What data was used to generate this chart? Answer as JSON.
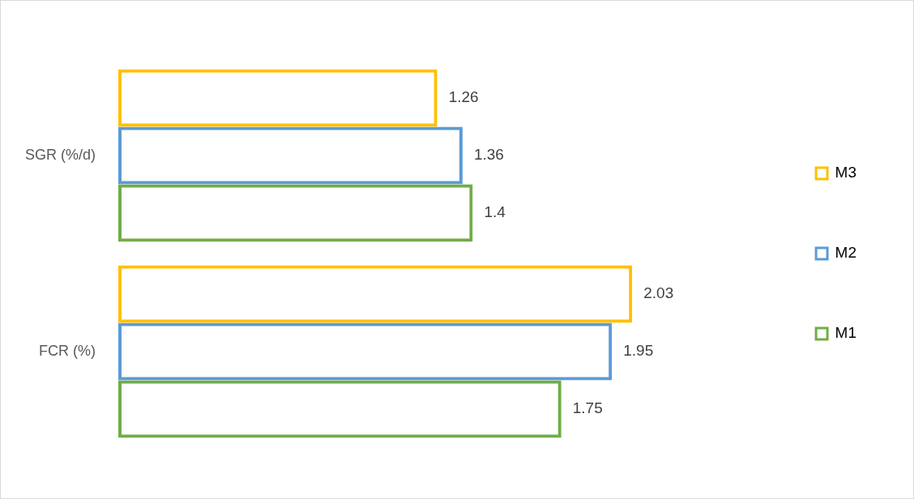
{
  "chart_data": {
    "type": "bar",
    "orientation": "horizontal",
    "categories": [
      "SGR (%/d)",
      "FCR (%)"
    ],
    "series": [
      {
        "name": "M3",
        "color": "#ffc000",
        "values": [
          1.26,
          2.03
        ]
      },
      {
        "name": "M2",
        "color": "#5b9bd5",
        "values": [
          1.36,
          1.95
        ]
      },
      {
        "name": "M1",
        "color": "#70ad47",
        "values": [
          1.4,
          1.75
        ]
      }
    ],
    "data_labels": true,
    "grid": false,
    "legend": "right"
  }
}
